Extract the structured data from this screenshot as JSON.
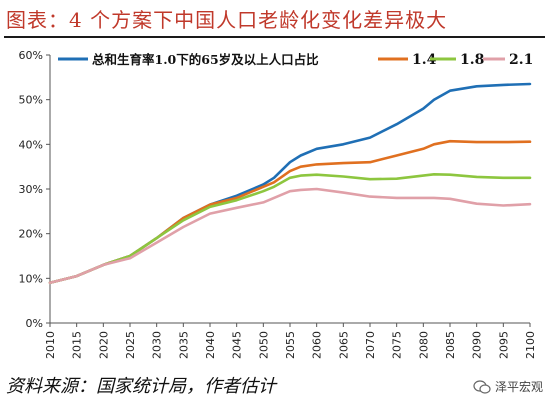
{
  "header": {
    "title": "图表：4 个方案下中国人口老龄化变化差异极大"
  },
  "footer": {
    "source": "资料来源：国家统计局，作者估计",
    "watermark": "泽平宏观"
  },
  "colors": {
    "title": "#c0392b",
    "tfr_1_0": "#1f6fb5",
    "tfr_1_4": "#e07020",
    "tfr_1_8": "#8dc63f",
    "tfr_2_1": "#e0a0a8"
  },
  "chart_data": {
    "type": "line",
    "title": "",
    "xlabel": "",
    "ylabel": "",
    "xlim": [
      2010,
      2100
    ],
    "ylim": [
      0,
      60
    ],
    "x_ticks": [
      2010,
      2015,
      2020,
      2025,
      2030,
      2035,
      2040,
      2045,
      2050,
      2055,
      2060,
      2065,
      2070,
      2075,
      2080,
      2085,
      2090,
      2095,
      2100
    ],
    "y_ticks": [
      "0%",
      "10%",
      "20%",
      "30%",
      "40%",
      "50%",
      "60%"
    ],
    "y_tick_values": [
      0,
      10,
      20,
      30,
      40,
      50,
      60
    ],
    "grid": false,
    "legend_position": "top",
    "x": [
      2010,
      2015,
      2020,
      2025,
      2030,
      2035,
      2040,
      2045,
      2050,
      2052,
      2055,
      2057,
      2060,
      2065,
      2070,
      2075,
      2080,
      2082,
      2085,
      2090,
      2095,
      2100
    ],
    "series": [
      {
        "name": "总和生育率1.0下的65岁及以上人口占比",
        "color": "#1f6fb5",
        "values": [
          9,
          10.5,
          13,
          15,
          19,
          23.5,
          26.5,
          28.5,
          31,
          32.5,
          36,
          37.5,
          39,
          40,
          41.5,
          44.5,
          48,
          50,
          52,
          53,
          53.3,
          53.5
        ]
      },
      {
        "name": "1.4",
        "color": "#e07020",
        "values": [
          9,
          10.5,
          13,
          15,
          19,
          23.5,
          26.5,
          28,
          30.5,
          31.5,
          34,
          35,
          35.5,
          35.8,
          36,
          37.5,
          39,
          40,
          40.7,
          40.5,
          40.5,
          40.6
        ]
      },
      {
        "name": "1.8",
        "color": "#8dc63f",
        "values": [
          9,
          10.5,
          13,
          15,
          19,
          23,
          26,
          27.5,
          29.5,
          30.5,
          32.5,
          33,
          33.2,
          32.8,
          32.2,
          32.3,
          33,
          33.3,
          33.2,
          32.7,
          32.5,
          32.5
        ]
      },
      {
        "name": "2.1",
        "color": "#e0a0a8",
        "values": [
          9,
          10.5,
          13,
          14.5,
          18,
          21.5,
          24.5,
          25.8,
          27,
          28,
          29.5,
          29.8,
          30,
          29.2,
          28.3,
          28,
          28,
          28,
          27.8,
          26.7,
          26.3,
          26.6
        ]
      }
    ]
  }
}
